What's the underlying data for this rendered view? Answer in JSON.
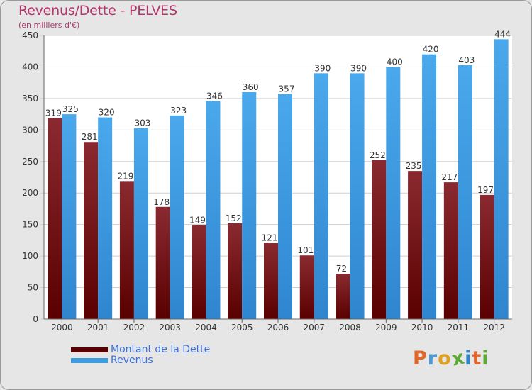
{
  "header": {
    "title": "Revenus/Dette - PELVES",
    "subtitle": "(en milliers d'€)"
  },
  "colors": {
    "dette": "#7a1a1e",
    "revenus": "#3d9be0",
    "title": "#b5356a",
    "legend_text": "#3b6fd8"
  },
  "legend": {
    "items": [
      {
        "label": "Montant de la Dette",
        "color": "#5a0000"
      },
      {
        "label": "Revenus",
        "color": "#3d9be0"
      }
    ]
  },
  "logo": {
    "text": "Proxiti",
    "letters": [
      {
        "ch": "P",
        "color": "#e0662a"
      },
      {
        "ch": "r",
        "color": "#4a9ad8"
      },
      {
        "ch": "o",
        "color": "#e0a020"
      },
      {
        "ch": "x",
        "color": "#5aaa35"
      },
      {
        "ch": "i",
        "color": "#2f85c8"
      },
      {
        "ch": "t",
        "color": "#e0662a"
      },
      {
        "ch": "i",
        "color": "#5aaa35"
      }
    ]
  },
  "chart_data": {
    "type": "bar",
    "title": "Revenus/Dette - PELVES",
    "subtitle": "(en milliers d'€)",
    "categories": [
      "2000",
      "2001",
      "2002",
      "2003",
      "2004",
      "2005",
      "2006",
      "2007",
      "2008",
      "2009",
      "2010",
      "2011",
      "2012"
    ],
    "series": [
      {
        "name": "Montant de la Dette",
        "values": [
          319,
          281,
          219,
          178,
          149,
          152,
          121,
          101,
          72,
          252,
          235,
          217,
          197
        ]
      },
      {
        "name": "Revenus",
        "values": [
          325,
          320,
          303,
          323,
          346,
          360,
          357,
          390,
          390,
          400,
          420,
          403,
          444
        ]
      }
    ],
    "ylim": [
      0,
      450
    ],
    "yticks": [
      0,
      50,
      100,
      150,
      200,
      250,
      300,
      350,
      400,
      450
    ],
    "grid": true,
    "legend_position": "bottom-left"
  }
}
